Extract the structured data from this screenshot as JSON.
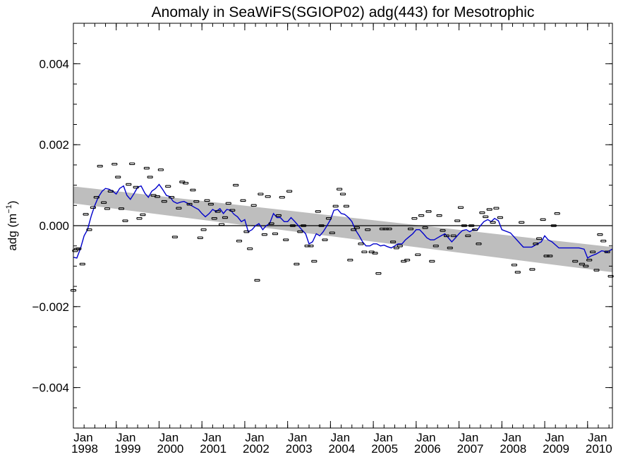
{
  "chart_data": {
    "type": "scatter",
    "title": "Anomaly in SeaWiFS(SGIOP02) adg(443) for Mesotrophic",
    "ylabel": "adg",
    "ylabel_unit_base": "m",
    "ylabel_unit_exp": "−1",
    "xlim": [
      1998.0,
      2010.58
    ],
    "ylim": [
      -0.005,
      0.005
    ],
    "y_ticks": [
      {
        "value": 0.004,
        "label": "0.004"
      },
      {
        "value": 0.002,
        "label": "0.002"
      },
      {
        "value": 0.0,
        "label": "0.000"
      },
      {
        "value": -0.002,
        "label": "−0.002"
      },
      {
        "value": -0.004,
        "label": "−0.004"
      }
    ],
    "x_ticks": [
      {
        "value": 1998,
        "month": "Jan",
        "year": "1998"
      },
      {
        "value": 1999,
        "month": "Jan",
        "year": "1999"
      },
      {
        "value": 2000,
        "month": "Jan",
        "year": "2000"
      },
      {
        "value": 2001,
        "month": "Jan",
        "year": "2001"
      },
      {
        "value": 2002,
        "month": "Jan",
        "year": "2002"
      },
      {
        "value": 2003,
        "month": "Jan",
        "year": "2003"
      },
      {
        "value": 2004,
        "month": "Jan",
        "year": "2004"
      },
      {
        "value": 2005,
        "month": "Jan",
        "year": "2005"
      },
      {
        "value": 2006,
        "month": "Jan",
        "year": "2006"
      },
      {
        "value": 2007,
        "month": "Jan",
        "year": "2007"
      },
      {
        "value": 2008,
        "month": "Jan",
        "year": "2008"
      },
      {
        "value": 2009,
        "month": "Jan",
        "year": "2009"
      },
      {
        "value": 2010,
        "month": "Jan",
        "year": "2010"
      }
    ],
    "trend_band": {
      "x": [
        1998.0,
        2010.58
      ],
      "upper": [
        0.00097,
        -0.00053
      ],
      "lower": [
        0.00055,
        -0.00115
      ],
      "color": "#bebebe"
    },
    "zero_line": 0.0,
    "colors": {
      "points": "#000000",
      "smooth_line": "#0000cc",
      "band": "#bebebe"
    },
    "points": [
      {
        "x": 1998.0,
        "y": -0.0016
      },
      {
        "x": 1998.04,
        "y": -0.00062
      },
      {
        "x": 1998.08,
        "y": -0.00058
      },
      {
        "x": 1998.12,
        "y": -0.00057
      },
      {
        "x": 1998.21,
        "y": -0.00095
      },
      {
        "x": 1998.29,
        "y": 0.00028
      },
      {
        "x": 1998.37,
        "y": -0.0001
      },
      {
        "x": 1998.46,
        "y": 0.00045
      },
      {
        "x": 1998.54,
        "y": 0.0007
      },
      {
        "x": 1998.62,
        "y": 0.00147
      },
      {
        "x": 1998.71,
        "y": 0.00057
      },
      {
        "x": 1998.79,
        "y": 0.00042
      },
      {
        "x": 1998.87,
        "y": 0.00085
      },
      {
        "x": 1998.96,
        "y": 0.00152
      },
      {
        "x": 1999.04,
        "y": 0.0012
      },
      {
        "x": 1999.12,
        "y": 0.00042
      },
      {
        "x": 1999.21,
        "y": 0.00012
      },
      {
        "x": 1999.29,
        "y": 0.00102
      },
      {
        "x": 1999.37,
        "y": 0.00153
      },
      {
        "x": 1999.46,
        "y": 0.00095
      },
      {
        "x": 1999.54,
        "y": 0.00018
      },
      {
        "x": 1999.62,
        "y": 0.00027
      },
      {
        "x": 1999.71,
        "y": 0.00142
      },
      {
        "x": 1999.79,
        "y": 0.0012
      },
      {
        "x": 1999.87,
        "y": 0.00075
      },
      {
        "x": 1999.96,
        "y": 0.00072
      },
      {
        "x": 2000.04,
        "y": 0.00138
      },
      {
        "x": 2000.12,
        "y": 0.0006
      },
      {
        "x": 2000.21,
        "y": 0.00097
      },
      {
        "x": 2000.29,
        "y": 0.0007
      },
      {
        "x": 2000.37,
        "y": -0.00028
      },
      {
        "x": 2000.46,
        "y": 0.00043
      },
      {
        "x": 2000.54,
        "y": 0.00108
      },
      {
        "x": 2000.62,
        "y": 0.00105
      },
      {
        "x": 2000.71,
        "y": 0.00053
      },
      {
        "x": 2000.79,
        "y": 0.00088
      },
      {
        "x": 2000.87,
        "y": 0.0006
      },
      {
        "x": 2000.96,
        "y": -0.0003
      },
      {
        "x": 2001.04,
        "y": -0.0001
      },
      {
        "x": 2001.12,
        "y": 0.00062
      },
      {
        "x": 2001.21,
        "y": 0.00053
      },
      {
        "x": 2001.29,
        "y": 0.00018
      },
      {
        "x": 2001.37,
        "y": 0.00035
      },
      {
        "x": 2001.46,
        "y": 3e-05
      },
      {
        "x": 2001.54,
        "y": 0.0002
      },
      {
        "x": 2001.62,
        "y": 0.00055
      },
      {
        "x": 2001.71,
        "y": 0.00038
      },
      {
        "x": 2001.79,
        "y": 0.001
      },
      {
        "x": 2001.87,
        "y": -0.00038
      },
      {
        "x": 2001.96,
        "y": 0.00062
      },
      {
        "x": 2002.04,
        "y": -0.00015
      },
      {
        "x": 2002.12,
        "y": -0.00057
      },
      {
        "x": 2002.21,
        "y": 0.0005
      },
      {
        "x": 2002.29,
        "y": -0.00135
      },
      {
        "x": 2002.37,
        "y": 0.00078
      },
      {
        "x": 2002.46,
        "y": -0.00022
      },
      {
        "x": 2002.54,
        "y": 0.00072
      },
      {
        "x": 2002.62,
        "y": 5e-05
      },
      {
        "x": 2002.71,
        "y": -0.0002
      },
      {
        "x": 2002.79,
        "y": 0.00025
      },
      {
        "x": 2002.87,
        "y": 0.0007
      },
      {
        "x": 2002.96,
        "y": -0.00035
      },
      {
        "x": 2003.04,
        "y": 0.00085
      },
      {
        "x": 2003.12,
        "y": 0.0
      },
      {
        "x": 2003.21,
        "y": -0.00095
      },
      {
        "x": 2003.29,
        "y": -0.00015
      },
      {
        "x": 2003.37,
        "y": 0.0
      },
      {
        "x": 2003.46,
        "y": -0.0005
      },
      {
        "x": 2003.54,
        "y": -0.0005
      },
      {
        "x": 2003.62,
        "y": -0.00088
      },
      {
        "x": 2003.71,
        "y": 0.00035
      },
      {
        "x": 2003.79,
        "y": 0.0
      },
      {
        "x": 2003.87,
        "y": -0.00035
      },
      {
        "x": 2003.96,
        "y": 0.00018
      },
      {
        "x": 2004.04,
        "y": -0.00018
      },
      {
        "x": 2004.12,
        "y": 0.00048
      },
      {
        "x": 2004.21,
        "y": 0.0009
      },
      {
        "x": 2004.29,
        "y": 0.00078
      },
      {
        "x": 2004.37,
        "y": 0.00048
      },
      {
        "x": 2004.46,
        "y": -0.00085
      },
      {
        "x": 2004.54,
        "y": -0.0001
      },
      {
        "x": 2004.62,
        "y": -5e-05
      },
      {
        "x": 2004.71,
        "y": -0.00045
      },
      {
        "x": 2004.79,
        "y": -0.00065
      },
      {
        "x": 2004.87,
        "y": -0.0001
      },
      {
        "x": 2004.96,
        "y": -0.00065
      },
      {
        "x": 2005.04,
        "y": -0.00068
      },
      {
        "x": 2005.12,
        "y": -0.00118
      },
      {
        "x": 2005.21,
        "y": -8e-05
      },
      {
        "x": 2005.29,
        "y": -8e-05
      },
      {
        "x": 2005.37,
        "y": -8e-05
      },
      {
        "x": 2005.46,
        "y": -0.0004
      },
      {
        "x": 2005.54,
        "y": -0.00055
      },
      {
        "x": 2005.62,
        "y": -0.0005
      },
      {
        "x": 2005.71,
        "y": -0.00088
      },
      {
        "x": 2005.79,
        "y": -0.00085
      },
      {
        "x": 2005.87,
        "y": -8e-05
      },
      {
        "x": 2005.96,
        "y": 0.00018
      },
      {
        "x": 2006.04,
        "y": -0.00072
      },
      {
        "x": 2006.12,
        "y": 0.00025
      },
      {
        "x": 2006.21,
        "y": -5e-05
      },
      {
        "x": 2006.29,
        "y": 0.00035
      },
      {
        "x": 2006.37,
        "y": -0.00088
      },
      {
        "x": 2006.46,
        "y": -0.0005
      },
      {
        "x": 2006.54,
        "y": 0.00025
      },
      {
        "x": 2006.62,
        "y": -0.00012
      },
      {
        "x": 2006.71,
        "y": -0.00025
      },
      {
        "x": 2006.79,
        "y": -0.00055
      },
      {
        "x": 2006.87,
        "y": -0.00025
      },
      {
        "x": 2006.96,
        "y": 0.00012
      },
      {
        "x": 2007.04,
        "y": 0.00045
      },
      {
        "x": 2007.12,
        "y": 0.0
      },
      {
        "x": 2007.21,
        "y": -0.00025
      },
      {
        "x": 2007.29,
        "y": 0.0
      },
      {
        "x": 2007.37,
        "y": -0.0001
      },
      {
        "x": 2007.46,
        "y": -0.00045
      },
      {
        "x": 2007.54,
        "y": 0.00032
      },
      {
        "x": 2007.62,
        "y": 0.00022
      },
      {
        "x": 2007.71,
        "y": 0.0004
      },
      {
        "x": 2007.79,
        "y": 8e-05
      },
      {
        "x": 2007.87,
        "y": 0.00043
      },
      {
        "x": 2007.96,
        "y": 0.0002
      },
      {
        "x": 2008.29,
        "y": -0.00097
      },
      {
        "x": 2008.37,
        "y": -0.00115
      },
      {
        "x": 2008.46,
        "y": 8e-05
      },
      {
        "x": 2008.71,
        "y": -0.00108
      },
      {
        "x": 2008.79,
        "y": -0.00045
      },
      {
        "x": 2008.87,
        "y": -0.00032
      },
      {
        "x": 2008.96,
        "y": 0.00015
      },
      {
        "x": 2009.04,
        "y": -0.00075
      },
      {
        "x": 2009.12,
        "y": -0.00075
      },
      {
        "x": 2009.21,
        "y": 0.0
      },
      {
        "x": 2009.29,
        "y": 0.0003
      },
      {
        "x": 2009.71,
        "y": -0.00088
      },
      {
        "x": 2009.87,
        "y": -0.00095
      },
      {
        "x": 2009.96,
        "y": -0.001
      },
      {
        "x": 2010.04,
        "y": -0.00085
      },
      {
        "x": 2010.12,
        "y": -0.00065
      },
      {
        "x": 2010.21,
        "y": -0.0011
      },
      {
        "x": 2010.29,
        "y": -0.00022
      },
      {
        "x": 2010.37,
        "y": -0.00038
      },
      {
        "x": 2010.46,
        "y": -0.00065
      },
      {
        "x": 2010.54,
        "y": -0.00125
      }
    ],
    "smooth_line": {
      "x": [
        1998.0,
        1998.08,
        1998.17,
        1998.25,
        1998.33,
        1998.42,
        1998.5,
        1998.58,
        1998.67,
        1998.75,
        1998.83,
        1998.92,
        1999.0,
        1999.08,
        1999.17,
        1999.25,
        1999.33,
        1999.42,
        1999.5,
        1999.58,
        1999.67,
        1999.75,
        1999.83,
        1999.92,
        2000.0,
        2000.08,
        2000.17,
        2000.25,
        2000.33,
        2000.42,
        2000.5,
        2000.58,
        2000.67,
        2000.75,
        2000.83,
        2000.92,
        2001.0,
        2001.08,
        2001.17,
        2001.25,
        2001.33,
        2001.42,
        2001.5,
        2001.58,
        2001.67,
        2001.75,
        2001.83,
        2001.92,
        2002.0,
        2002.08,
        2002.17,
        2002.25,
        2002.33,
        2002.42,
        2002.5,
        2002.58,
        2002.67,
        2002.75,
        2002.83,
        2002.92,
        2003.0,
        2003.08,
        2003.17,
        2003.25,
        2003.33,
        2003.42,
        2003.5,
        2003.58,
        2003.67,
        2003.75,
        2003.83,
        2003.92,
        2004.0,
        2004.08,
        2004.17,
        2004.25,
        2004.33,
        2004.42,
        2004.5,
        2004.58,
        2004.67,
        2004.75,
        2004.83,
        2004.92,
        2005.0,
        2005.08,
        2005.17,
        2005.25,
        2005.33,
        2005.42,
        2005.5,
        2005.58,
        2005.67,
        2005.75,
        2005.83,
        2005.92,
        2006.0,
        2006.08,
        2006.17,
        2006.25,
        2006.33,
        2006.42,
        2006.5,
        2006.58,
        2006.67,
        2006.75,
        2006.83,
        2006.92,
        2007.0,
        2007.08,
        2007.17,
        2007.25,
        2007.33,
        2007.42,
        2007.5,
        2007.58,
        2007.67,
        2007.75,
        2007.83,
        2007.92,
        2008.0,
        2008.2,
        2008.5,
        2008.7,
        2008.83,
        2008.92,
        2009.0,
        2009.08,
        2009.17,
        2009.33,
        2009.6,
        2009.8,
        2009.92,
        2010.0,
        2010.08,
        2010.2,
        2010.33,
        2010.46,
        2010.58
      ],
      "y": [
        -0.00078,
        -0.0008,
        -0.00055,
        -0.00025,
        -0.0001,
        0.00025,
        0.0005,
        0.0007,
        0.00085,
        0.00092,
        0.0009,
        0.00085,
        0.00078,
        0.00092,
        0.00098,
        0.00075,
        0.00065,
        0.0008,
        0.00095,
        0.00098,
        0.0008,
        0.0007,
        0.00085,
        0.00092,
        0.00102,
        0.0009,
        0.00075,
        0.00072,
        0.0006,
        0.00055,
        0.00058,
        0.0006,
        0.00055,
        0.0005,
        0.00045,
        0.0004,
        0.0003,
        0.00022,
        0.0003,
        0.0004,
        0.00035,
        0.00042,
        0.0003,
        0.0004,
        0.00038,
        0.00028,
        0.00022,
        0.0001,
        0.00015,
        -0.00015,
        -0.0001,
        0.0,
        5e-05,
        -0.0001,
        0.0,
        5e-05,
        0.0003,
        0.0002,
        0.0002,
        0.0001,
        0.0001,
        0.0002,
        0.0001,
        0.0,
        -0.0001,
        -0.0002,
        -0.00045,
        -0.0004,
        -0.0002,
        -0.00025,
        -0.00015,
        0.0,
        0.00015,
        0.00038,
        0.0004,
        0.0003,
        0.00028,
        0.0002,
        0.0001,
        -0.0001,
        -0.00025,
        -0.0004,
        -0.0005,
        -0.0005,
        -0.00045,
        -0.00045,
        -0.0005,
        -0.00048,
        -0.00052,
        -0.00055,
        -0.0005,
        -0.00045,
        -0.00045,
        -0.00035,
        -0.00028,
        -0.0002,
        -0.0001,
        -0.0001,
        -0.0002,
        -0.0003,
        -0.00035,
        -0.00035,
        -0.0003,
        -0.00025,
        -0.0002,
        -0.0003,
        -0.0004,
        -0.0003,
        -0.0002,
        -0.00012,
        -0.0001,
        -0.00015,
        -0.0001,
        -0.00012,
        0.0,
        0.0001,
        0.00015,
        0.0001,
        0.00018,
        0.00012,
        -0.0001,
        -0.00018,
        -0.00053,
        -0.00053,
        -0.00045,
        -0.0004,
        -0.00025,
        -0.00035,
        -0.0004,
        -0.00055,
        -0.00055,
        -0.00055,
        -0.00058,
        -0.0008,
        -0.00075,
        -0.0007,
        -0.00062,
        -0.00065,
        -0.00058
      ]
    }
  }
}
